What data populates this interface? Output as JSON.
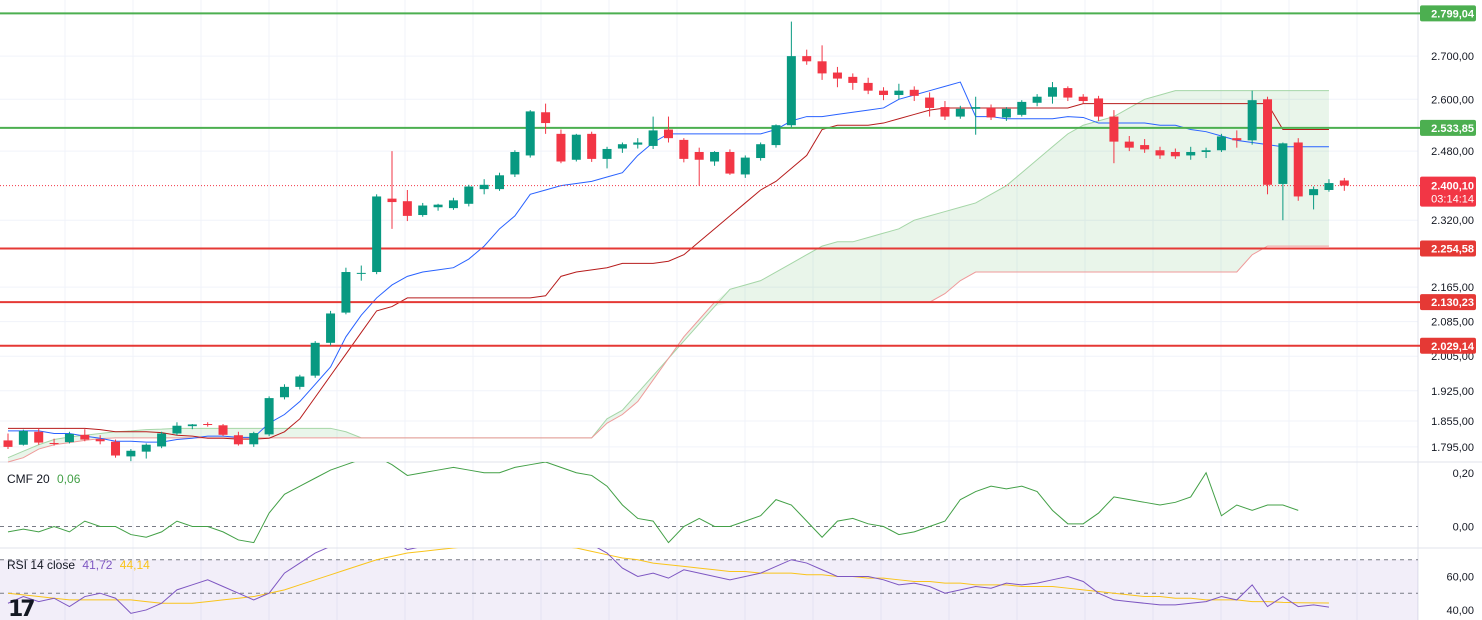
{
  "chart_data": [
    {
      "type": "candlestick",
      "panel": "price",
      "y_ticks": [
        "2.700,00",
        "2.600,00",
        "2.480,00",
        "2.320,00",
        "2.165,00",
        "2.085,00",
        "2.005,00",
        "1.925,00",
        "1.855,00",
        "1.795,00"
      ],
      "ylim": [
        1760,
        2830
      ],
      "grid": true,
      "candles": [
        {
          "o": 1810,
          "h": 1826,
          "l": 1790,
          "c": 1795
        },
        {
          "o": 1800,
          "h": 1835,
          "l": 1798,
          "c": 1832
        },
        {
          "o": 1830,
          "h": 1838,
          "l": 1800,
          "c": 1805
        },
        {
          "o": 1804,
          "h": 1814,
          "l": 1798,
          "c": 1802
        },
        {
          "o": 1806,
          "h": 1830,
          "l": 1803,
          "c": 1825
        },
        {
          "o": 1823,
          "h": 1836,
          "l": 1808,
          "c": 1812
        },
        {
          "o": 1813,
          "h": 1822,
          "l": 1801,
          "c": 1808
        },
        {
          "o": 1807,
          "h": 1812,
          "l": 1770,
          "c": 1775
        },
        {
          "o": 1773,
          "h": 1790,
          "l": 1762,
          "c": 1786
        },
        {
          "o": 1784,
          "h": 1803,
          "l": 1768,
          "c": 1800
        },
        {
          "o": 1796,
          "h": 1830,
          "l": 1792,
          "c": 1826
        },
        {
          "o": 1826,
          "h": 1852,
          "l": 1822,
          "c": 1844
        },
        {
          "o": 1843,
          "h": 1848,
          "l": 1836,
          "c": 1847
        },
        {
          "o": 1848,
          "h": 1852,
          "l": 1842,
          "c": 1847
        },
        {
          "o": 1845,
          "h": 1848,
          "l": 1820,
          "c": 1823
        },
        {
          "o": 1822,
          "h": 1830,
          "l": 1798,
          "c": 1801
        },
        {
          "o": 1801,
          "h": 1830,
          "l": 1795,
          "c": 1827
        },
        {
          "o": 1824,
          "h": 1912,
          "l": 1820,
          "c": 1908
        },
        {
          "o": 1910,
          "h": 1940,
          "l": 1905,
          "c": 1934
        },
        {
          "o": 1934,
          "h": 1962,
          "l": 1928,
          "c": 1958
        },
        {
          "o": 1960,
          "h": 2040,
          "l": 1955,
          "c": 2036
        },
        {
          "o": 2036,
          "h": 2110,
          "l": 2030,
          "c": 2104
        },
        {
          "o": 2106,
          "h": 2210,
          "l": 2102,
          "c": 2200
        },
        {
          "o": 2198,
          "h": 2215,
          "l": 2180,
          "c": 2198
        },
        {
          "o": 2200,
          "h": 2380,
          "l": 2195,
          "c": 2375
        },
        {
          "o": 2370,
          "h": 2480,
          "l": 2300,
          "c": 2362
        },
        {
          "o": 2364,
          "h": 2390,
          "l": 2318,
          "c": 2330
        },
        {
          "o": 2332,
          "h": 2360,
          "l": 2328,
          "c": 2354
        },
        {
          "o": 2350,
          "h": 2358,
          "l": 2342,
          "c": 2356
        },
        {
          "o": 2348,
          "h": 2372,
          "l": 2344,
          "c": 2366
        },
        {
          "o": 2358,
          "h": 2402,
          "l": 2352,
          "c": 2398
        },
        {
          "o": 2392,
          "h": 2415,
          "l": 2380,
          "c": 2402
        },
        {
          "o": 2392,
          "h": 2430,
          "l": 2388,
          "c": 2424
        },
        {
          "o": 2426,
          "h": 2482,
          "l": 2420,
          "c": 2478
        },
        {
          "o": 2470,
          "h": 2575,
          "l": 2465,
          "c": 2572
        },
        {
          "o": 2570,
          "h": 2590,
          "l": 2520,
          "c": 2545
        },
        {
          "o": 2520,
          "h": 2530,
          "l": 2452,
          "c": 2456
        },
        {
          "o": 2460,
          "h": 2520,
          "l": 2456,
          "c": 2518
        },
        {
          "o": 2520,
          "h": 2525,
          "l": 2455,
          "c": 2462
        },
        {
          "o": 2462,
          "h": 2490,
          "l": 2440,
          "c": 2485
        },
        {
          "o": 2486,
          "h": 2500,
          "l": 2476,
          "c": 2496
        },
        {
          "o": 2495,
          "h": 2510,
          "l": 2486,
          "c": 2500
        },
        {
          "o": 2492,
          "h": 2560,
          "l": 2485,
          "c": 2528
        },
        {
          "o": 2530,
          "h": 2560,
          "l": 2500,
          "c": 2510
        },
        {
          "o": 2506,
          "h": 2510,
          "l": 2454,
          "c": 2462
        },
        {
          "o": 2478,
          "h": 2488,
          "l": 2400,
          "c": 2460
        },
        {
          "o": 2456,
          "h": 2480,
          "l": 2446,
          "c": 2478
        },
        {
          "o": 2478,
          "h": 2484,
          "l": 2425,
          "c": 2428
        },
        {
          "o": 2426,
          "h": 2470,
          "l": 2418,
          "c": 2465
        },
        {
          "o": 2464,
          "h": 2500,
          "l": 2458,
          "c": 2496
        },
        {
          "o": 2494,
          "h": 2542,
          "l": 2488,
          "c": 2540
        },
        {
          "o": 2540,
          "h": 2780,
          "l": 2535,
          "c": 2700
        },
        {
          "o": 2700,
          "h": 2715,
          "l": 2680,
          "c": 2688
        },
        {
          "o": 2688,
          "h": 2725,
          "l": 2645,
          "c": 2660
        },
        {
          "o": 2662,
          "h": 2675,
          "l": 2628,
          "c": 2648
        },
        {
          "o": 2652,
          "h": 2660,
          "l": 2622,
          "c": 2638
        },
        {
          "o": 2638,
          "h": 2650,
          "l": 2612,
          "c": 2620
        },
        {
          "o": 2620,
          "h": 2628,
          "l": 2598,
          "c": 2610
        },
        {
          "o": 2610,
          "h": 2636,
          "l": 2600,
          "c": 2620
        },
        {
          "o": 2622,
          "h": 2630,
          "l": 2596,
          "c": 2608
        },
        {
          "o": 2604,
          "h": 2616,
          "l": 2560,
          "c": 2580
        },
        {
          "o": 2582,
          "h": 2596,
          "l": 2552,
          "c": 2560
        },
        {
          "o": 2560,
          "h": 2585,
          "l": 2555,
          "c": 2578
        },
        {
          "o": 2578,
          "h": 2606,
          "l": 2518,
          "c": 2582
        },
        {
          "o": 2580,
          "h": 2588,
          "l": 2552,
          "c": 2558
        },
        {
          "o": 2558,
          "h": 2582,
          "l": 2550,
          "c": 2578
        },
        {
          "o": 2564,
          "h": 2598,
          "l": 2560,
          "c": 2594
        },
        {
          "o": 2592,
          "h": 2612,
          "l": 2584,
          "c": 2606
        },
        {
          "o": 2606,
          "h": 2640,
          "l": 2590,
          "c": 2628
        },
        {
          "o": 2626,
          "h": 2630,
          "l": 2596,
          "c": 2604
        },
        {
          "o": 2606,
          "h": 2612,
          "l": 2590,
          "c": 2596
        },
        {
          "o": 2602,
          "h": 2608,
          "l": 2550,
          "c": 2560
        },
        {
          "o": 2560,
          "h": 2575,
          "l": 2452,
          "c": 2502
        },
        {
          "o": 2502,
          "h": 2515,
          "l": 2480,
          "c": 2488
        },
        {
          "o": 2494,
          "h": 2508,
          "l": 2476,
          "c": 2484
        },
        {
          "o": 2482,
          "h": 2490,
          "l": 2462,
          "c": 2470
        },
        {
          "o": 2478,
          "h": 2486,
          "l": 2462,
          "c": 2468
        },
        {
          "o": 2470,
          "h": 2490,
          "l": 2460,
          "c": 2478
        },
        {
          "o": 2478,
          "h": 2488,
          "l": 2464,
          "c": 2482
        },
        {
          "o": 2482,
          "h": 2520,
          "l": 2478,
          "c": 2514
        },
        {
          "o": 2510,
          "h": 2528,
          "l": 2488,
          "c": 2505
        },
        {
          "o": 2505,
          "h": 2620,
          "l": 2495,
          "c": 2598
        },
        {
          "o": 2600,
          "h": 2606,
          "l": 2380,
          "c": 2402
        },
        {
          "o": 2404,
          "h": 2500,
          "l": 2320,
          "c": 2498
        },
        {
          "o": 2500,
          "h": 2510,
          "l": 2365,
          "c": 2375
        },
        {
          "o": 2378,
          "h": 2398,
          "l": 2345,
          "c": 2392
        },
        {
          "o": 2390,
          "h": 2415,
          "l": 2386,
          "c": 2406
        },
        {
          "o": 2412,
          "h": 2418,
          "l": 2388,
          "c": 2400.1
        }
      ],
      "conversion_line": [
        1832,
        1832,
        1832,
        1826,
        1826,
        1820,
        1815,
        1808,
        1808,
        1806,
        1806,
        1812,
        1815,
        1820,
        1820,
        1817,
        1817,
        1850,
        1870,
        1900,
        1940,
        1980,
        2050,
        2100,
        2140,
        2170,
        2190,
        2200,
        2205,
        2210,
        2230,
        2260,
        2300,
        2330,
        2380,
        2390,
        2400,
        2405,
        2410,
        2420,
        2430,
        2470,
        2500,
        2520,
        2520,
        2520,
        2520,
        2520,
        2520,
        2520,
        2530,
        2550,
        2560,
        2560,
        2565,
        2570,
        2575,
        2580,
        2600,
        2610,
        2620,
        2630,
        2640,
        2560,
        2560,
        2555,
        2555,
        2555,
        2555,
        2560,
        2558,
        2545,
        2545,
        2545,
        2545,
        2540,
        2540,
        2530,
        2525,
        2515,
        2505,
        2500,
        2495,
        2490,
        2490,
        2490,
        2490
      ],
      "base_line": [
        1838,
        1838,
        1838,
        1838,
        1838,
        1838,
        1835,
        1830,
        1830,
        1830,
        1828,
        1822,
        1820,
        1815,
        1815,
        1813,
        1813,
        1815,
        1830,
        1860,
        1910,
        1960,
        2010,
        2060,
        2110,
        2120,
        2140,
        2140,
        2140,
        2140,
        2140,
        2140,
        2140,
        2140,
        2140,
        2145,
        2190,
        2200,
        2205,
        2210,
        2220,
        2220,
        2220,
        2225,
        2240,
        2270,
        2300,
        2330,
        2360,
        2390,
        2410,
        2440,
        2470,
        2530,
        2540,
        2540,
        2540,
        2545,
        2555,
        2565,
        2575,
        2580,
        2580,
        2580,
        2580,
        2580,
        2580,
        2580,
        2580,
        2580,
        2590,
        2590,
        2590,
        2590,
        2590,
        2590,
        2590,
        2590,
        2590,
        2590,
        2590,
        2590,
        2590,
        2530,
        2530,
        2530,
        2530
      ],
      "cloud_span_a": [
        1770,
        1785,
        1800,
        1812,
        1818,
        1822,
        1826,
        1830,
        1832,
        1835,
        1836,
        1838,
        1838,
        1838,
        1838,
        1838,
        1838,
        1838,
        1838,
        1838,
        1838,
        1838,
        1830,
        1816,
        1816,
        1816,
        1816,
        1816,
        1816,
        1816,
        1816,
        1816,
        1816,
        1816,
        1816,
        1816,
        1816,
        1816,
        1816,
        1860,
        1880,
        1920,
        1960,
        2000,
        2040,
        2080,
        2120,
        2160,
        2170,
        2180,
        2200,
        2220,
        2240,
        2260,
        2270,
        2270,
        2280,
        2290,
        2300,
        2320,
        2330,
        2340,
        2350,
        2360,
        2380,
        2400,
        2430,
        2460,
        2490,
        2520,
        2540,
        2550,
        2560,
        2580,
        2600,
        2610,
        2620,
        2620,
        2620,
        2620,
        2620,
        2620,
        2620,
        2620,
        2620,
        2620,
        2620
      ],
      "cloud_span_b": [
        1760,
        1770,
        1790,
        1800,
        1805,
        1810,
        1814,
        1816,
        1816,
        1816,
        1816,
        1816,
        1816,
        1816,
        1816,
        1816,
        1816,
        1816,
        1816,
        1816,
        1816,
        1816,
        1816,
        1816,
        1816,
        1816,
        1816,
        1816,
        1816,
        1816,
        1816,
        1816,
        1816,
        1816,
        1816,
        1816,
        1816,
        1816,
        1816,
        1850,
        1870,
        1900,
        1950,
        2000,
        2050,
        2090,
        2130,
        2130,
        2130,
        2130,
        2130,
        2130,
        2130,
        2130,
        2130,
        2130,
        2130,
        2130,
        2130,
        2130,
        2130,
        2150,
        2180,
        2200,
        2200,
        2200,
        2200,
        2200,
        2200,
        2200,
        2200,
        2200,
        2200,
        2200,
        2200,
        2200,
        2200,
        2200,
        2200,
        2200,
        2200,
        2240,
        2260,
        2260,
        2260,
        2260,
        2260
      ],
      "horizontal_levels": [
        {
          "label": "2.799,04",
          "value": 2799.04,
          "color": "#4caf50"
        },
        {
          "label": "2.533,85",
          "value": 2533.85,
          "color": "#4caf50"
        },
        {
          "label": "2.254,58",
          "value": 2254.58,
          "color": "#e53935"
        },
        {
          "label": "2.130,23",
          "value": 2130.23,
          "color": "#e53935"
        },
        {
          "label": "2.029,14",
          "value": 2029.14,
          "color": "#e53935"
        }
      ],
      "last_price": {
        "label": "2.400,10",
        "countdown": "03:14:14",
        "value": 2400.1,
        "color": "#f23645"
      }
    },
    {
      "type": "line",
      "panel": "cmf",
      "legend": {
        "name": "CMF 20",
        "value": "0,06"
      },
      "y_ticks": [
        "0,20",
        "0,00"
      ],
      "ylim": [
        -0.08,
        0.24
      ],
      "series": [
        -0.02,
        -0.01,
        -0.02,
        0.0,
        -0.02,
        0.02,
        0.0,
        0.0,
        -0.03,
        -0.04,
        -0.02,
        0.02,
        0.0,
        0.0,
        -0.02,
        -0.05,
        -0.06,
        0.05,
        0.12,
        0.15,
        0.18,
        0.21,
        0.23,
        0.25,
        0.26,
        0.23,
        0.19,
        0.2,
        0.21,
        0.22,
        0.21,
        0.2,
        0.2,
        0.22,
        0.23,
        0.24,
        0.22,
        0.2,
        0.19,
        0.15,
        0.08,
        0.03,
        0.02,
        -0.06,
        0.0,
        0.03,
        0.0,
        0.0,
        0.02,
        0.04,
        0.1,
        0.08,
        0.02,
        -0.04,
        0.02,
        0.03,
        0.01,
        0.0,
        -0.03,
        -0.02,
        0.0,
        0.02,
        0.1,
        0.13,
        0.15,
        0.14,
        0.15,
        0.13,
        0.06,
        0.01,
        0.01,
        0.05,
        0.11,
        0.1,
        0.09,
        0.08,
        0.09,
        0.11,
        0.2,
        0.04,
        0.08,
        0.06,
        0.08,
        0.08,
        0.06
      ],
      "grid": true
    },
    {
      "type": "line",
      "panel": "rsi",
      "legend": {
        "name": "RSI 14 close",
        "value": "41,72",
        "ma_value": "44,14"
      },
      "y_ticks": [
        "60,00",
        "40,00"
      ],
      "ylim": [
        34,
        77
      ],
      "levels": [
        70,
        50,
        30
      ],
      "rsi": [
        44,
        48,
        45,
        47,
        42,
        48,
        50,
        47,
        38,
        40,
        44,
        52,
        55,
        58,
        54,
        50,
        46,
        50,
        62,
        68,
        74,
        78,
        82,
        84,
        85,
        82,
        76,
        78,
        79,
        80,
        82,
        84,
        85,
        84,
        86,
        88,
        83,
        80,
        79,
        74,
        65,
        60,
        62,
        59,
        64,
        62,
        60,
        58,
        60,
        62,
        66,
        70,
        68,
        64,
        60,
        60,
        60,
        58,
        55,
        56,
        54,
        50,
        52,
        54,
        53,
        56,
        55,
        56,
        58,
        60,
        57,
        50,
        46,
        45,
        44,
        43,
        43,
        44,
        45,
        48,
        46,
        55,
        42,
        48,
        42,
        43,
        41.72
      ],
      "rsi_ma": [
        50,
        49,
        48,
        47,
        46,
        46,
        46,
        46,
        46,
        45,
        44,
        44,
        44,
        45,
        46,
        47,
        48,
        50,
        52,
        55,
        58,
        61,
        64,
        67,
        70,
        72,
        74,
        75,
        76,
        77,
        78,
        79,
        79,
        79,
        79,
        79,
        78,
        77,
        75,
        73,
        71,
        70,
        68,
        67,
        66,
        65,
        64,
        63,
        63,
        62,
        62,
        62,
        61,
        61,
        60,
        60,
        59,
        59,
        58,
        57,
        57,
        56,
        56,
        55,
        55,
        55,
        54,
        54,
        54,
        53,
        52,
        51,
        50,
        49,
        48,
        48,
        47,
        47,
        46,
        46,
        46,
        45,
        45,
        44.5,
        44.3,
        44.2,
        44.14
      ],
      "grid": true
    }
  ]
}
